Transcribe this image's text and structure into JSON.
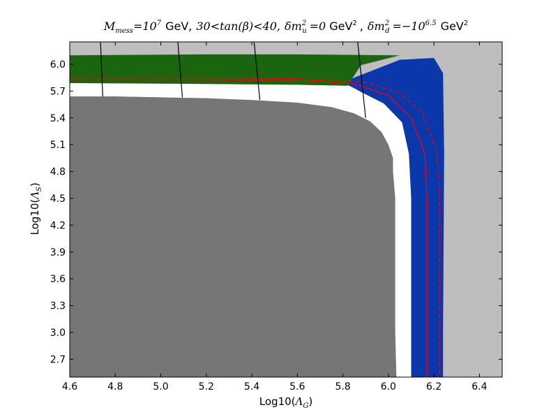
{
  "chart_data": {
    "type": "area",
    "title": {
      "m_mess_sym": "M",
      "m_mess_sub": "mess",
      "m_mess_eq": "=10",
      "m_mess_exp": "7",
      "gev1": "GeV,",
      "tanb_lo": "30",
      "tanb_mid": "<tan(β)<",
      "tanb_hi": "40,",
      "dmu_sym": "δm",
      "dmu_sub": "u",
      "dmu_sup": "2",
      "dmu_eq": "=0",
      "gev2": "GeV",
      "gev2_sup": "2",
      "comma": ",",
      "dmd_sym": "δm",
      "dmd_sub": "d",
      "dmd_sup": "2",
      "dmd_eq": "=−10",
      "dmd_exp": "6.5",
      "gev3": "GeV",
      "gev3_sup": "2"
    },
    "xlabel": {
      "prefix": "Log10(",
      "sym": "Λ",
      "sub": "G",
      "suffix": ")"
    },
    "ylabel": {
      "prefix": "Log10(",
      "sym": "Λ",
      "sub": "S",
      "suffix": ")"
    },
    "xlim": [
      4.6,
      6.5
    ],
    "ylim": [
      2.5,
      6.25
    ],
    "xticks": [
      "4.6",
      "4.8",
      "5.0",
      "5.2",
      "5.4",
      "5.6",
      "5.8",
      "6.0",
      "6.2",
      "6.4"
    ],
    "yticks": [
      "2.7",
      "3.0",
      "3.3",
      "3.6",
      "3.9",
      "4.2",
      "4.5",
      "4.8",
      "5.1",
      "5.4",
      "5.7",
      "6.0"
    ],
    "grid": false,
    "colors": {
      "background_region": "#bebebe",
      "excluded_region": "#767676",
      "blue_region": "#0a37aa",
      "green_region": "#1b6410",
      "gap_region": "#ffffff",
      "red_lines": "#ff0000",
      "black_contours": "#000000"
    },
    "regions": {
      "gray_excluded": [
        [
          4.6,
          2.5
        ],
        [
          4.6,
          5.64
        ],
        [
          4.8,
          5.64
        ],
        [
          5.0,
          5.63
        ],
        [
          5.2,
          5.62
        ],
        [
          5.4,
          5.6
        ],
        [
          5.6,
          5.57
        ],
        [
          5.75,
          5.52
        ],
        [
          5.85,
          5.45
        ],
        [
          5.92,
          5.36
        ],
        [
          5.97,
          5.24
        ],
        [
          6.0,
          5.1
        ],
        [
          6.02,
          4.95
        ],
        [
          6.02,
          4.8
        ],
        [
          6.03,
          4.5
        ],
        [
          6.03,
          3.0
        ],
        [
          6.035,
          2.5
        ]
      ],
      "blue_allowed": [
        [
          5.8,
          5.8
        ],
        [
          6.05,
          6.05
        ],
        [
          6.2,
          6.07
        ],
        [
          6.24,
          5.9
        ],
        [
          6.245,
          5.0
        ],
        [
          6.24,
          3.0
        ],
        [
          6.24,
          2.5
        ],
        [
          6.1,
          2.5
        ],
        [
          6.1,
          4.5
        ],
        [
          6.09,
          5.0
        ],
        [
          6.06,
          5.35
        ],
        [
          5.98,
          5.56
        ],
        [
          5.88,
          5.69
        ]
      ],
      "green_allowed": [
        [
          4.6,
          6.1
        ],
        [
          5.2,
          6.11
        ],
        [
          5.6,
          6.11
        ],
        [
          6.05,
          6.1
        ],
        [
          5.88,
          5.99
        ],
        [
          5.82,
          5.76
        ],
        [
          5.6,
          5.77
        ],
        [
          5.2,
          5.78
        ],
        [
          4.6,
          5.79
        ]
      ],
      "white_gap": [
        [
          4.6,
          5.79
        ],
        [
          5.2,
          5.78
        ],
        [
          5.6,
          5.77
        ],
        [
          5.82,
          5.76
        ],
        [
          5.94,
          5.66
        ],
        [
          6.07,
          5.37
        ],
        [
          6.1,
          5.0
        ],
        [
          6.1,
          2.5
        ],
        [
          6.035,
          2.5
        ],
        [
          6.03,
          3.0
        ],
        [
          6.03,
          4.5
        ],
        [
          6.02,
          4.8
        ],
        [
          6.02,
          4.95
        ],
        [
          6.0,
          5.1
        ],
        [
          5.97,
          5.24
        ],
        [
          5.92,
          5.36
        ],
        [
          5.85,
          5.45
        ],
        [
          5.75,
          5.52
        ],
        [
          5.6,
          5.57
        ],
        [
          5.4,
          5.6
        ],
        [
          5.2,
          5.62
        ],
        [
          5.0,
          5.63
        ],
        [
          4.8,
          5.64
        ],
        [
          4.6,
          5.64
        ]
      ]
    },
    "series": [
      {
        "style": "solid-red",
        "x": [
          4.6,
          5.2,
          5.6,
          5.85,
          6.0,
          6.1,
          6.16,
          6.17,
          6.17
        ],
        "y": [
          5.83,
          5.83,
          5.82,
          5.78,
          5.65,
          5.4,
          5.0,
          4.5,
          2.5
        ]
      },
      {
        "style": "dashed-red",
        "x": [
          4.6,
          5.2,
          5.6,
          5.9,
          6.05,
          6.15,
          6.21,
          6.225,
          6.225
        ],
        "y": [
          5.85,
          5.85,
          5.84,
          5.8,
          5.68,
          5.45,
          5.05,
          4.6,
          2.5
        ]
      }
    ],
    "contours": [
      {
        "x": [
          4.735,
          4.745
        ],
        "y": [
          6.25,
          5.64
        ]
      },
      {
        "x": [
          5.075,
          5.095
        ],
        "y": [
          6.25,
          5.63
        ]
      },
      {
        "x": [
          5.41,
          5.435
        ],
        "y": [
          6.25,
          5.6
        ]
      },
      {
        "x": [
          5.865,
          5.9
        ],
        "y": [
          6.25,
          5.4
        ]
      }
    ]
  }
}
